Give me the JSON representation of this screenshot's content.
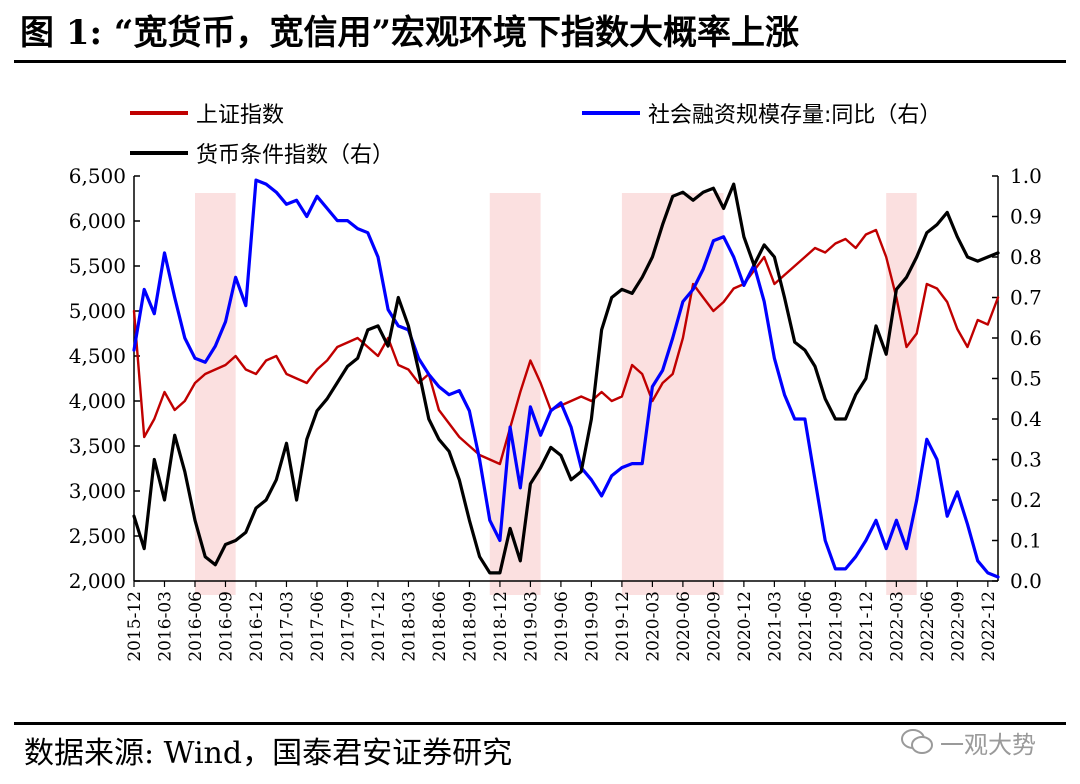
{
  "title": "图 1: “宽货币，宽信用”宏观环境下指数大概率上涨",
  "source": "数据来源: Wind，国泰君安证券研究",
  "watermark": "一观大势",
  "colors": {
    "shade": "#fbe0e0",
    "sh_index": "#c00000",
    "tsf_growth": "#0000ff",
    "monetary": "#000000"
  },
  "legend": {
    "sh_index": "上证指数",
    "tsf_growth": "社会融资规模存量:同比（右）",
    "monetary": "货币条件指数（右）"
  },
  "chart_data": {
    "type": "line",
    "x_tick_labels": [
      "2015-12",
      "2016-03",
      "2016-06",
      "2016-09",
      "2016-12",
      "2017-03",
      "2017-06",
      "2017-09",
      "2017-12",
      "2018-03",
      "2018-06",
      "2018-09",
      "2018-12",
      "2019-03",
      "2019-06",
      "2019-09",
      "2019-12",
      "2020-03",
      "2020-06",
      "2020-09",
      "2020-12",
      "2021-03",
      "2021-06",
      "2021-09",
      "2021-12",
      "2022-03",
      "2022-06",
      "2022-09",
      "2022-12"
    ],
    "y_left": {
      "lim": [
        2000,
        6500
      ],
      "ticks": [
        "2,000",
        "2,500",
        "3,000",
        "3,500",
        "4,000",
        "4,500",
        "5,000",
        "5,500",
        "6,000",
        "6,500"
      ]
    },
    "y_right": {
      "lim": [
        0.0,
        1.0
      ],
      "ticks": [
        "0.0",
        "0.1",
        "0.2",
        "0.3",
        "0.4",
        "0.5",
        "0.6",
        "0.7",
        "0.8",
        "0.9",
        "1.0"
      ]
    },
    "shaded_periods": [
      [
        "2016-06",
        "2016-10"
      ],
      [
        "2018-11",
        "2019-04"
      ],
      [
        "2019-12",
        "2020-10"
      ],
      [
        "2022-02",
        "2022-05"
      ]
    ],
    "series": [
      {
        "name": "上证指数",
        "axis": "left",
        "x": [
          "2015-12",
          "2016-01",
          "2016-02",
          "2016-03",
          "2016-04",
          "2016-05",
          "2016-06",
          "2016-07",
          "2016-08",
          "2016-09",
          "2016-10",
          "2016-11",
          "2016-12",
          "2017-01",
          "2017-02",
          "2017-03",
          "2017-04",
          "2017-05",
          "2017-06",
          "2017-07",
          "2017-08",
          "2017-09",
          "2017-10",
          "2017-11",
          "2017-12",
          "2018-01",
          "2018-02",
          "2018-03",
          "2018-04",
          "2018-05",
          "2018-06",
          "2018-07",
          "2018-08",
          "2018-09",
          "2018-10",
          "2018-11",
          "2018-12",
          "2019-01",
          "2019-02",
          "2019-03",
          "2019-04",
          "2019-05",
          "2019-06",
          "2019-07",
          "2019-08",
          "2019-09",
          "2019-10",
          "2019-11",
          "2019-12",
          "2020-01",
          "2020-02",
          "2020-03",
          "2020-04",
          "2020-05",
          "2020-06",
          "2020-07",
          "2020-08",
          "2020-09",
          "2020-10",
          "2020-11",
          "2020-12",
          "2021-01",
          "2021-02",
          "2021-03",
          "2021-04",
          "2021-05",
          "2021-06",
          "2021-07",
          "2021-08",
          "2021-09",
          "2021-10",
          "2021-11",
          "2021-12",
          "2022-01",
          "2022-02",
          "2022-03",
          "2022-04",
          "2022-05",
          "2022-06",
          "2022-07",
          "2022-08",
          "2022-09",
          "2022-10",
          "2022-11",
          "2022-12",
          "2023-01"
        ],
        "values": [
          5000,
          3600,
          3800,
          4100,
          3900,
          4000,
          4200,
          4300,
          4350,
          4400,
          4500,
          4350,
          4300,
          4450,
          4500,
          4300,
          4250,
          4200,
          4350,
          4450,
          4600,
          4650,
          4700,
          4600,
          4500,
          4700,
          4400,
          4350,
          4200,
          4300,
          3900,
          3750,
          3600,
          3500,
          3400,
          3350,
          3300,
          3700,
          4100,
          4450,
          4200,
          3900,
          3950,
          4000,
          4050,
          4000,
          4100,
          4000,
          4050,
          4400,
          4300,
          4000,
          4200,
          4300,
          4700,
          5300,
          5150,
          5000,
          5100,
          5250,
          5300,
          5450,
          5600,
          5300,
          5400,
          5500,
          5600,
          5700,
          5650,
          5750,
          5800,
          5700,
          5850,
          5900,
          5600,
          5150,
          4600,
          4750,
          5300,
          5250,
          5100,
          4800,
          4600,
          4900,
          4850,
          5150
        ]
      },
      {
        "name": "社会融资规模存量:同比（右）",
        "axis": "right",
        "x": [
          "2015-12",
          "2016-01",
          "2016-02",
          "2016-03",
          "2016-04",
          "2016-05",
          "2016-06",
          "2016-07",
          "2016-08",
          "2016-09",
          "2016-10",
          "2016-11",
          "2016-12",
          "2017-01",
          "2017-02",
          "2017-03",
          "2017-04",
          "2017-05",
          "2017-06",
          "2017-07",
          "2017-08",
          "2017-09",
          "2017-10",
          "2017-11",
          "2017-12",
          "2018-01",
          "2018-02",
          "2018-03",
          "2018-04",
          "2018-05",
          "2018-06",
          "2018-07",
          "2018-08",
          "2018-09",
          "2018-10",
          "2018-11",
          "2018-12",
          "2019-01",
          "2019-02",
          "2019-03",
          "2019-04",
          "2019-05",
          "2019-06",
          "2019-07",
          "2019-08",
          "2019-09",
          "2019-10",
          "2019-11",
          "2019-12",
          "2020-01",
          "2020-02",
          "2020-03",
          "2020-04",
          "2020-05",
          "2020-06",
          "2020-07",
          "2020-08",
          "2020-09",
          "2020-10",
          "2020-11",
          "2020-12",
          "2021-01",
          "2021-02",
          "2021-03",
          "2021-04",
          "2021-05",
          "2021-06",
          "2021-07",
          "2021-08",
          "2021-09",
          "2021-10",
          "2021-11",
          "2021-12",
          "2022-01",
          "2022-02",
          "2022-03",
          "2022-04",
          "2022-05",
          "2022-06",
          "2022-07",
          "2022-08",
          "2022-09",
          "2022-10",
          "2022-11",
          "2022-12",
          "2023-01"
        ],
        "values": [
          0.57,
          0.72,
          0.66,
          0.81,
          0.7,
          0.6,
          0.55,
          0.54,
          0.58,
          0.64,
          0.75,
          0.68,
          0.99,
          0.98,
          0.96,
          0.93,
          0.94,
          0.9,
          0.95,
          0.92,
          0.89,
          0.89,
          0.87,
          0.86,
          0.8,
          0.67,
          0.63,
          0.62,
          0.55,
          0.51,
          0.48,
          0.46,
          0.47,
          0.42,
          0.3,
          0.15,
          0.1,
          0.38,
          0.23,
          0.43,
          0.36,
          0.42,
          0.44,
          0.38,
          0.28,
          0.25,
          0.21,
          0.26,
          0.28,
          0.29,
          0.29,
          0.48,
          0.52,
          0.6,
          0.69,
          0.72,
          0.77,
          0.84,
          0.85,
          0.8,
          0.73,
          0.78,
          0.69,
          0.55,
          0.46,
          0.4,
          0.4,
          0.25,
          0.1,
          0.03,
          0.03,
          0.06,
          0.1,
          0.15,
          0.08,
          0.15,
          0.08,
          0.2,
          0.35,
          0.3,
          0.16,
          0.22,
          0.14,
          0.05,
          0.02,
          0.01
        ]
      },
      {
        "name": "货币条件指数（右）",
        "axis": "right",
        "x": [
          "2015-12",
          "2016-01",
          "2016-02",
          "2016-03",
          "2016-04",
          "2016-05",
          "2016-06",
          "2016-07",
          "2016-08",
          "2016-09",
          "2016-10",
          "2016-11",
          "2016-12",
          "2017-01",
          "2017-02",
          "2017-03",
          "2017-04",
          "2017-05",
          "2017-06",
          "2017-07",
          "2017-08",
          "2017-09",
          "2017-10",
          "2017-11",
          "2017-12",
          "2018-01",
          "2018-02",
          "2018-03",
          "2018-04",
          "2018-05",
          "2018-06",
          "2018-07",
          "2018-08",
          "2018-09",
          "2018-10",
          "2018-11",
          "2018-12",
          "2019-01",
          "2019-02",
          "2019-03",
          "2019-04",
          "2019-05",
          "2019-06",
          "2019-07",
          "2019-08",
          "2019-09",
          "2019-10",
          "2019-11",
          "2019-12",
          "2020-01",
          "2020-02",
          "2020-03",
          "2020-04",
          "2020-05",
          "2020-06",
          "2020-07",
          "2020-08",
          "2020-09",
          "2020-10",
          "2020-11",
          "2020-12",
          "2021-01",
          "2021-02",
          "2021-03",
          "2021-04",
          "2021-05",
          "2021-06",
          "2021-07",
          "2021-08",
          "2021-09",
          "2021-10",
          "2021-11",
          "2021-12",
          "2022-01",
          "2022-02",
          "2022-03",
          "2022-04",
          "2022-05",
          "2022-06",
          "2022-07",
          "2022-08",
          "2022-09",
          "2022-10",
          "2022-11",
          "2022-12",
          "2023-01"
        ],
        "values": [
          0.16,
          0.08,
          0.3,
          0.2,
          0.36,
          0.27,
          0.15,
          0.06,
          0.04,
          0.09,
          0.1,
          0.12,
          0.18,
          0.2,
          0.25,
          0.34,
          0.2,
          0.35,
          0.42,
          0.45,
          0.49,
          0.53,
          0.55,
          0.62,
          0.63,
          0.58,
          0.7,
          0.63,
          0.52,
          0.4,
          0.35,
          0.32,
          0.25,
          0.15,
          0.06,
          0.02,
          0.02,
          0.13,
          0.05,
          0.24,
          0.28,
          0.33,
          0.31,
          0.25,
          0.27,
          0.4,
          0.62,
          0.7,
          0.72,
          0.71,
          0.75,
          0.8,
          0.88,
          0.95,
          0.96,
          0.94,
          0.96,
          0.97,
          0.92,
          0.98,
          0.85,
          0.78,
          0.83,
          0.8,
          0.7,
          0.59,
          0.57,
          0.53,
          0.45,
          0.4,
          0.4,
          0.46,
          0.5,
          0.63,
          0.56,
          0.72,
          0.75,
          0.8,
          0.86,
          0.88,
          0.91,
          0.85,
          0.8,
          0.79,
          0.8,
          0.81
        ]
      }
    ]
  }
}
